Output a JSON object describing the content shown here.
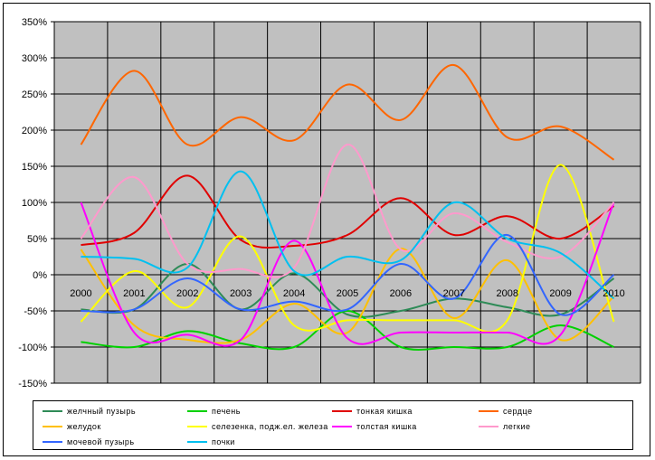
{
  "chart_data": {
    "type": "line",
    "title": "",
    "xlabel": "",
    "ylabel": "",
    "ylim": [
      -150,
      350
    ],
    "y_tick_step": 50,
    "y_tick_suffix": "%",
    "grid": true,
    "legend_position": "bottom",
    "plot_background": "#c0c0c0",
    "categories": [
      "2000",
      "2001",
      "2002",
      "2003",
      "2004",
      "2005",
      "2006",
      "2007",
      "2008",
      "2009",
      "2010"
    ],
    "series": [
      {
        "name": "желчный пузырь",
        "color": "#2e8b57",
        "values": [
          -48,
          -48,
          15,
          -48,
          2,
          -55,
          -50,
          -33,
          -45,
          -55,
          -5
        ]
      },
      {
        "name": "печень",
        "color": "#00d000",
        "values": [
          -93,
          -100,
          -78,
          -95,
          -100,
          -50,
          -100,
          -100,
          -100,
          -70,
          -100
        ]
      },
      {
        "name": "тонкая кишка",
        "color": "#e00000",
        "values": [
          41,
          58,
          137,
          48,
          40,
          55,
          106,
          55,
          81,
          50,
          95
        ]
      },
      {
        "name": "сердце",
        "color": "#ff6600",
        "values": [
          180,
          282,
          180,
          218,
          186,
          263,
          214,
          290,
          190,
          205,
          159
        ]
      },
      {
        "name": "желудок",
        "color": "#ffc000",
        "values": [
          35,
          -70,
          -90,
          -90,
          -40,
          -80,
          36,
          -60,
          20,
          -90,
          -30
        ]
      },
      {
        "name": "селезенка, подж.ел. железа",
        "color": "#ffff00",
        "values": [
          -65,
          5,
          -45,
          53,
          -70,
          -63,
          -63,
          -63,
          -63,
          152,
          -65
        ]
      },
      {
        "name": "толстая кишка",
        "color": "#ff00ff",
        "values": [
          100,
          -80,
          -83,
          -90,
          47,
          -88,
          -80,
          -80,
          -80,
          -83,
          100
        ]
      },
      {
        "name": "легкие",
        "color": "#ff99cc",
        "values": [
          50,
          135,
          15,
          8,
          10,
          180,
          35,
          85,
          45,
          25,
          100
        ]
      },
      {
        "name": "мочевой пузырь",
        "color": "#3366ff",
        "values": [
          -50,
          -48,
          -5,
          -48,
          -37,
          -48,
          15,
          -33,
          55,
          -55,
          0
        ]
      },
      {
        "name": "почки",
        "color": "#00c0f0",
        "values": [
          25,
          22,
          10,
          143,
          5,
          25,
          20,
          100,
          50,
          30,
          -33
        ]
      }
    ]
  }
}
